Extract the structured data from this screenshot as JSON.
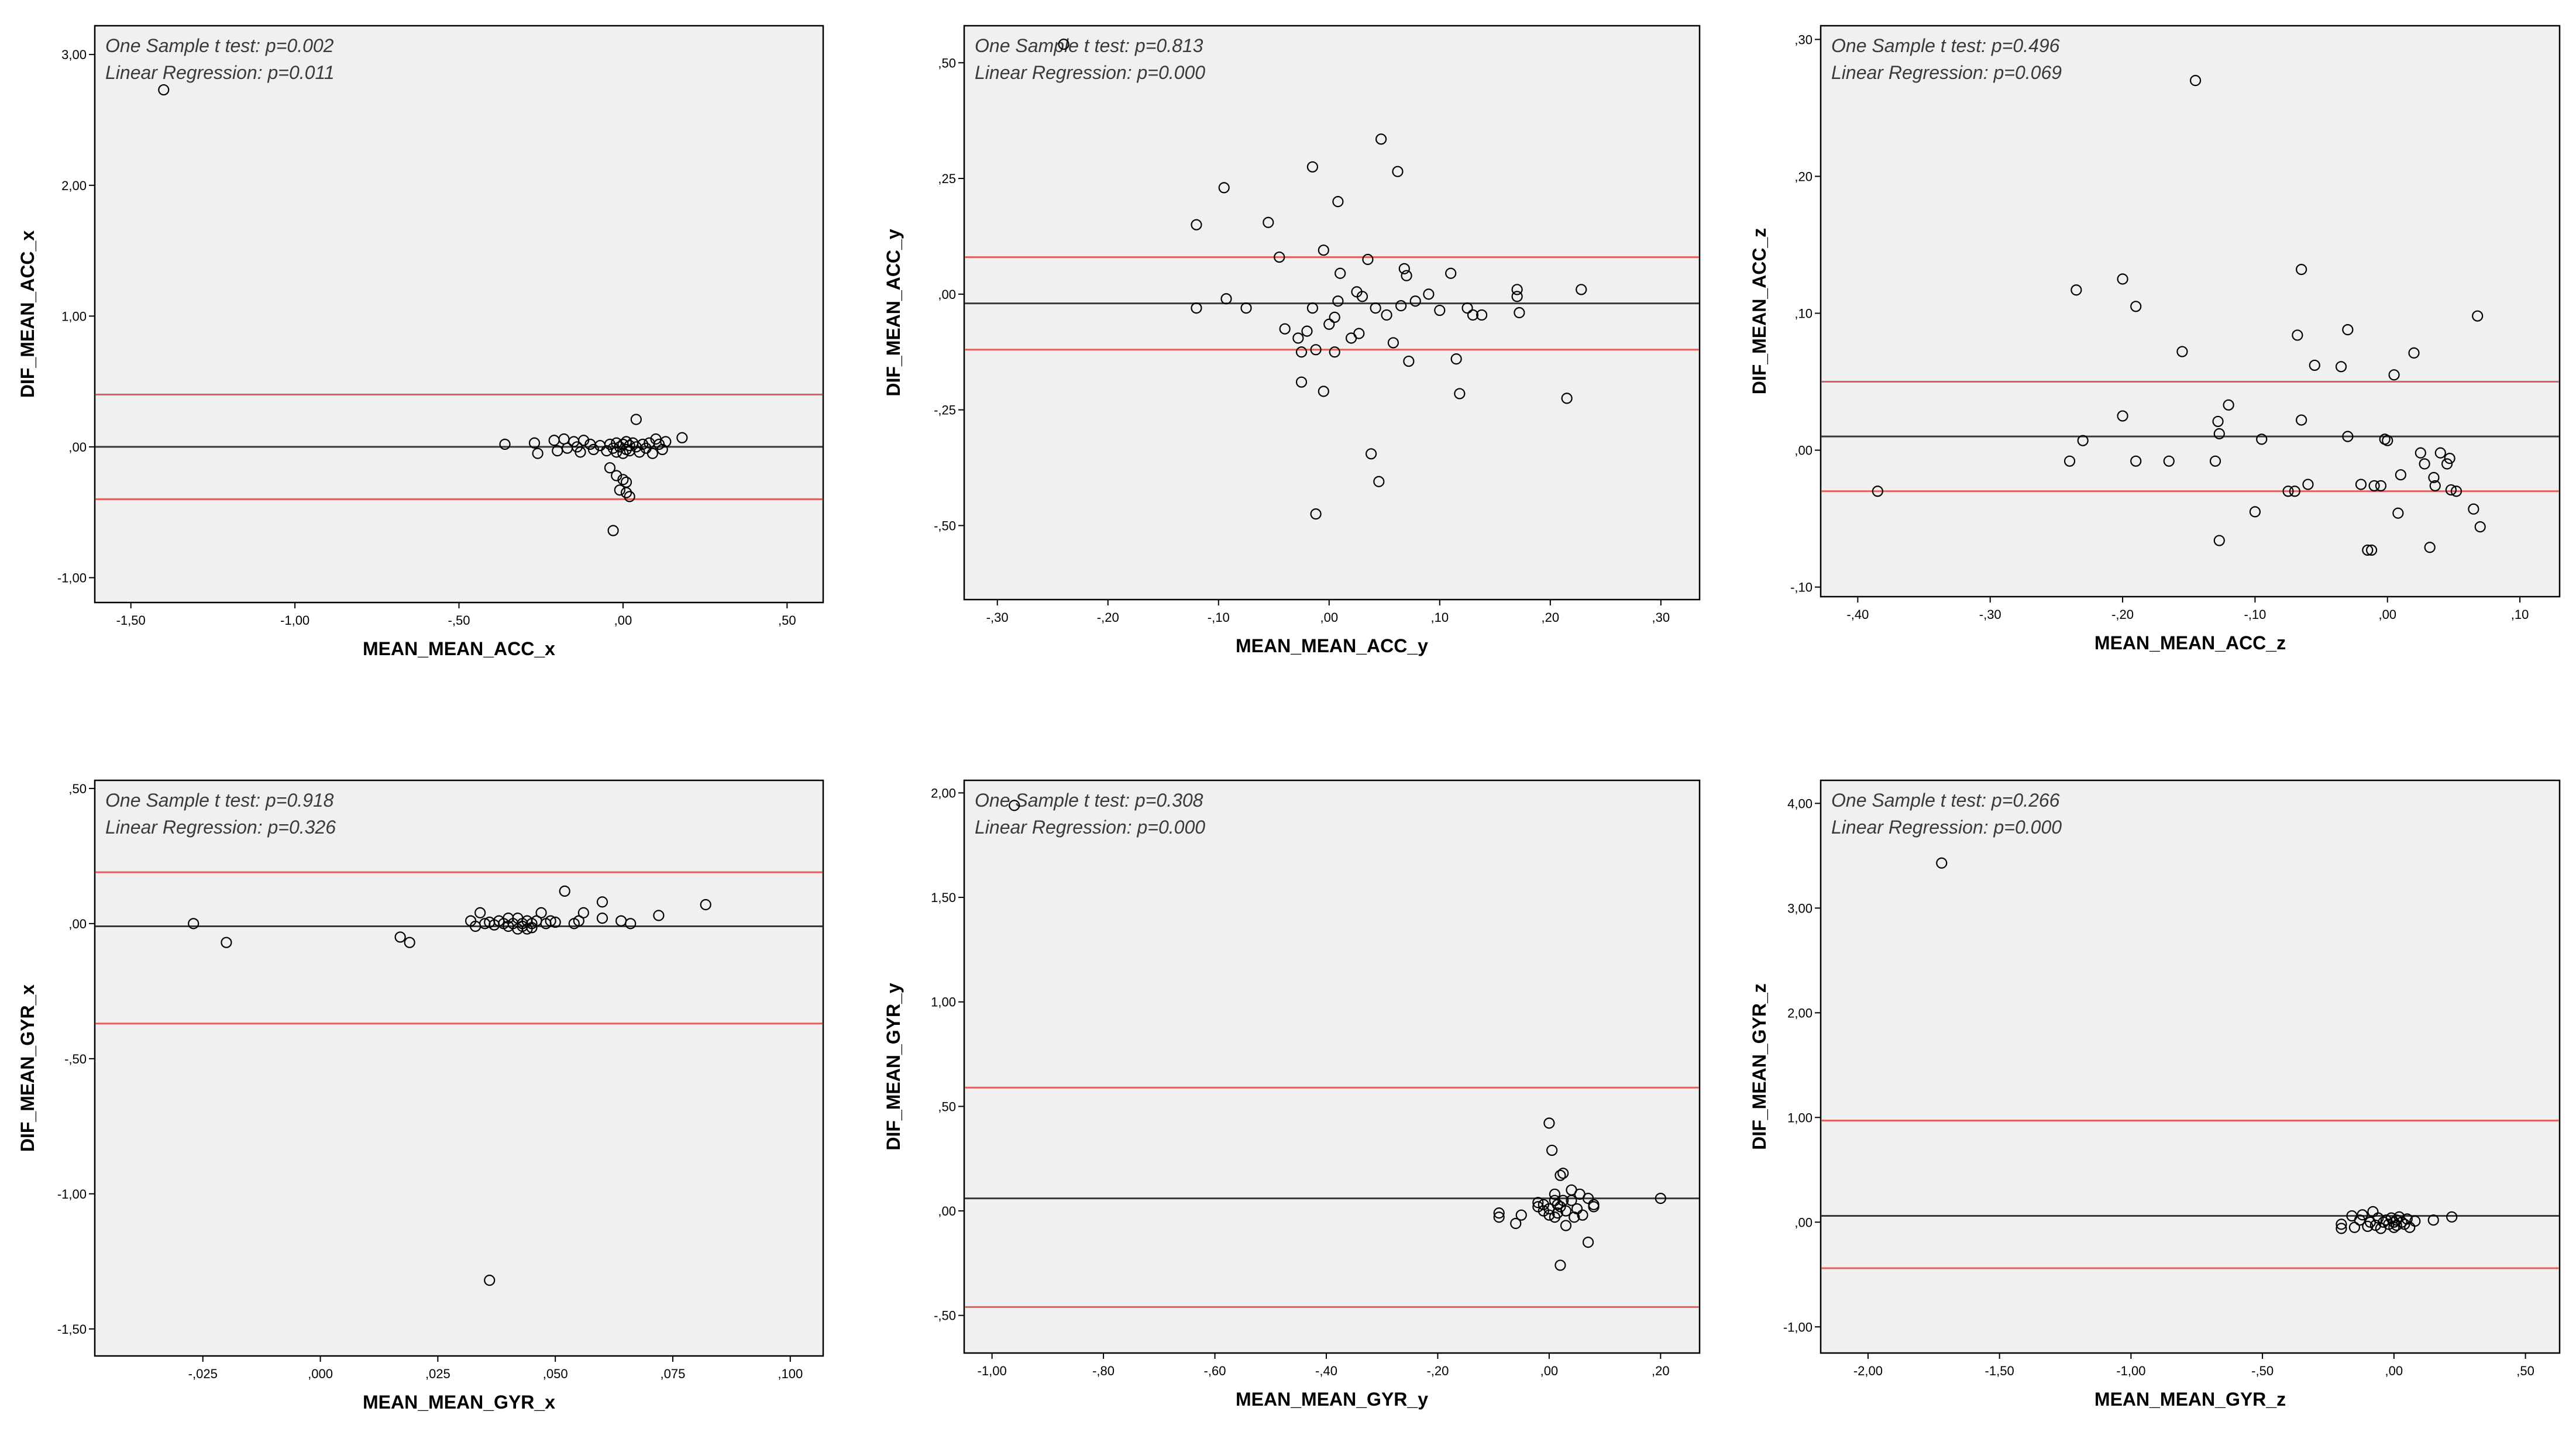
{
  "colors": {
    "mean_line": "#3a3a3a",
    "loa_line": "#e06060",
    "background": "#f0f0f0",
    "points": "#000000"
  },
  "chart_data": [
    {
      "id": "acc_x",
      "type": "scatter",
      "xlabel": "MEAN_MEAN_ACC_x",
      "ylabel": "DIF_MEAN_ACC_x",
      "xlim": [
        -1.61,
        0.61
      ],
      "ylim": [
        -1.19,
        3.22
      ],
      "xticks": [
        -1.5,
        -1.0,
        -0.5,
        0.0,
        0.5
      ],
      "xtick_labels": [
        "-1,50",
        "-1,00",
        "-,50",
        ",00",
        ",50"
      ],
      "yticks": [
        -1.0,
        0.0,
        1.0,
        2.0,
        3.0
      ],
      "ytick_labels": [
        "-1,00",
        ",00",
        "1,00",
        "2,00",
        "3,00"
      ],
      "annotations": [
        "One Sample t test: p=0.002",
        "Linear Regression: p=0.011"
      ],
      "mean_line": 0.0,
      "loa_upper": 0.4,
      "loa_lower": -0.4,
      "points": [
        [
          -1.4,
          2.73
        ],
        [
          -0.36,
          0.02
        ],
        [
          -0.27,
          0.03
        ],
        [
          -0.26,
          -0.05
        ],
        [
          -0.21,
          0.05
        ],
        [
          -0.2,
          -0.03
        ],
        [
          -0.18,
          0.06
        ],
        [
          -0.17,
          -0.01
        ],
        [
          -0.15,
          0.04
        ],
        [
          -0.14,
          0.0
        ],
        [
          -0.13,
          -0.04
        ],
        [
          -0.12,
          0.05
        ],
        [
          -0.1,
          0.02
        ],
        [
          -0.09,
          -0.02
        ],
        [
          -0.07,
          0.01
        ],
        [
          -0.05,
          -0.03
        ],
        [
          -0.04,
          0.02
        ],
        [
          -0.03,
          -0.01
        ],
        [
          -0.02,
          0.03
        ],
        [
          -0.02,
          -0.04
        ],
        [
          -0.01,
          0.0
        ],
        [
          0.0,
          0.02
        ],
        [
          0.0,
          -0.05
        ],
        [
          0.01,
          0.04
        ],
        [
          0.01,
          -0.02
        ],
        [
          0.02,
          0.01
        ],
        [
          0.02,
          -0.03
        ],
        [
          0.03,
          0.03
        ],
        [
          0.04,
          0.0
        ],
        [
          0.05,
          -0.04
        ],
        [
          0.06,
          0.02
        ],
        [
          0.07,
          -0.01
        ],
        [
          0.08,
          0.03
        ],
        [
          0.09,
          -0.05
        ],
        [
          0.1,
          0.06
        ],
        [
          0.11,
          0.02
        ],
        [
          0.12,
          -0.02
        ],
        [
          0.13,
          0.04
        ],
        [
          0.18,
          0.07
        ],
        [
          0.04,
          0.21
        ],
        [
          -0.04,
          -0.16
        ],
        [
          -0.02,
          -0.22
        ],
        [
          0.0,
          -0.25
        ],
        [
          0.01,
          -0.27
        ],
        [
          -0.01,
          -0.33
        ],
        [
          0.01,
          -0.35
        ],
        [
          -0.03,
          -0.64
        ],
        [
          0.02,
          -0.38
        ]
      ]
    },
    {
      "id": "acc_y",
      "type": "scatter",
      "xlabel": "MEAN_MEAN_ACC_y",
      "ylabel": "DIF_MEAN_ACC_y",
      "xlim": [
        -0.33,
        0.335
      ],
      "ylim": [
        -0.66,
        0.58
      ],
      "xticks": [
        -0.3,
        -0.2,
        -0.1,
        0.0,
        0.1,
        0.2,
        0.3
      ],
      "xtick_labels": [
        "-,30",
        "-,20",
        "-,10",
        ",00",
        ",10",
        ",20",
        ",30"
      ],
      "yticks": [
        -0.5,
        -0.25,
        0.0,
        0.25,
        0.5
      ],
      "ytick_labels": [
        "-,50",
        "-,25",
        ",00",
        ",25",
        ",50"
      ],
      "annotations": [
        "One Sample t test: p=0.813",
        "Linear Regression: p=0.000"
      ],
      "mean_line": -0.02,
      "loa_upper": 0.08,
      "loa_lower": -0.12,
      "points": [
        [
          -0.24,
          0.54
        ],
        [
          -0.12,
          0.15
        ],
        [
          -0.12,
          -0.03
        ],
        [
          -0.095,
          0.23
        ],
        [
          -0.093,
          -0.01
        ],
        [
          -0.075,
          -0.03
        ],
        [
          -0.055,
          0.155
        ],
        [
          -0.045,
          0.08
        ],
        [
          -0.04,
          -0.075
        ],
        [
          -0.028,
          -0.095
        ],
        [
          -0.025,
          -0.125
        ],
        [
          -0.025,
          -0.19
        ],
        [
          -0.02,
          -0.08
        ],
        [
          -0.015,
          -0.03
        ],
        [
          -0.015,
          0.275
        ],
        [
          -0.012,
          -0.12
        ],
        [
          -0.012,
          -0.475
        ],
        [
          -0.005,
          0.095
        ],
        [
          -0.005,
          -0.21
        ],
        [
          0.0,
          -0.065
        ],
        [
          0.005,
          -0.05
        ],
        [
          0.005,
          -0.125
        ],
        [
          0.008,
          -0.015
        ],
        [
          0.008,
          0.2
        ],
        [
          0.01,
          0.045
        ],
        [
          0.02,
          -0.095
        ],
        [
          0.025,
          0.005
        ],
        [
          0.027,
          -0.085
        ],
        [
          0.03,
          -0.005
        ],
        [
          0.035,
          0.075
        ],
        [
          0.038,
          -0.345
        ],
        [
          0.042,
          -0.03
        ],
        [
          0.045,
          -0.405
        ],
        [
          0.047,
          0.335
        ],
        [
          0.052,
          -0.045
        ],
        [
          0.058,
          -0.105
        ],
        [
          0.062,
          0.265
        ],
        [
          0.065,
          -0.025
        ],
        [
          0.068,
          0.055
        ],
        [
          0.07,
          0.04
        ],
        [
          0.072,
          -0.145
        ],
        [
          0.078,
          -0.015
        ],
        [
          0.09,
          0.0
        ],
        [
          0.1,
          -0.035
        ],
        [
          0.11,
          0.045
        ],
        [
          0.115,
          -0.14
        ],
        [
          0.118,
          -0.215
        ],
        [
          0.125,
          -0.03
        ],
        [
          0.13,
          -0.045
        ],
        [
          0.138,
          -0.045
        ],
        [
          0.17,
          0.01
        ],
        [
          0.17,
          -0.005
        ],
        [
          0.172,
          -0.04
        ],
        [
          0.215,
          -0.225
        ],
        [
          0.228,
          0.01
        ]
      ]
    },
    {
      "id": "acc_z",
      "type": "scatter",
      "xlabel": "MEAN_MEAN_ACC_z",
      "ylabel": "DIF_MEAN_ACC_z",
      "xlim": [
        -0.428,
        0.13
      ],
      "ylim": [
        -0.107,
        0.31
      ],
      "xticks": [
        -0.4,
        -0.3,
        -0.2,
        -0.1,
        0.0,
        0.1
      ],
      "xtick_labels": [
        "-,40",
        "-,30",
        "-,20",
        "-,10",
        ",00",
        ",10"
      ],
      "yticks": [
        -0.1,
        0.0,
        0.1,
        0.2,
        0.3
      ],
      "ytick_labels": [
        "-,10",
        ",00",
        ",10",
        ",20",
        ",30"
      ],
      "annotations": [
        "One Sample t test: p=0.496",
        "Linear Regression: p=0.069"
      ],
      "mean_line": 0.01,
      "loa_upper": 0.05,
      "loa_lower": -0.03,
      "points": [
        [
          -0.385,
          -0.03
        ],
        [
          -0.24,
          -0.008
        ],
        [
          -0.235,
          0.117
        ],
        [
          -0.23,
          0.007
        ],
        [
          -0.2,
          0.025
        ],
        [
          -0.2,
          0.125
        ],
        [
          -0.19,
          0.105
        ],
        [
          -0.19,
          -0.008
        ],
        [
          -0.165,
          -0.008
        ],
        [
          -0.155,
          0.072
        ],
        [
          -0.145,
          0.27
        ],
        [
          -0.13,
          -0.008
        ],
        [
          -0.128,
          0.021
        ],
        [
          -0.127,
          0.012
        ],
        [
          -0.127,
          -0.066
        ],
        [
          -0.12,
          0.033
        ],
        [
          -0.1,
          -0.045
        ],
        [
          -0.095,
          0.008
        ],
        [
          -0.075,
          -0.03
        ],
        [
          -0.07,
          -0.03
        ],
        [
          -0.068,
          0.084
        ],
        [
          -0.065,
          0.132
        ],
        [
          -0.065,
          0.022
        ],
        [
          -0.06,
          -0.025
        ],
        [
          -0.055,
          0.062
        ],
        [
          -0.035,
          0.061
        ],
        [
          -0.03,
          0.088
        ],
        [
          -0.03,
          0.01
        ],
        [
          -0.02,
          -0.025
        ],
        [
          -0.015,
          -0.073
        ],
        [
          -0.012,
          -0.073
        ],
        [
          -0.01,
          -0.026
        ],
        [
          -0.005,
          -0.026
        ],
        [
          -0.002,
          0.008
        ],
        [
          0.0,
          0.007
        ],
        [
          0.005,
          0.055
        ],
        [
          0.008,
          -0.046
        ],
        [
          0.01,
          -0.018
        ],
        [
          0.02,
          0.071
        ],
        [
          0.025,
          -0.002
        ],
        [
          0.028,
          -0.01
        ],
        [
          0.032,
          -0.071
        ],
        [
          0.035,
          -0.02
        ],
        [
          0.036,
          -0.026
        ],
        [
          0.04,
          -0.002
        ],
        [
          0.045,
          -0.01
        ],
        [
          0.047,
          -0.006
        ],
        [
          0.048,
          -0.029
        ],
        [
          0.052,
          -0.03
        ],
        [
          0.065,
          -0.043
        ],
        [
          0.068,
          0.098
        ],
        [
          0.07,
          -0.056
        ]
      ]
    },
    {
      "id": "gyr_x",
      "type": "scatter",
      "xlabel": "MEAN_MEAN_GYR_x",
      "ylabel": "DIF_MEAN_GYR_x",
      "xlim": [
        -0.048,
        0.107
      ],
      "ylim": [
        -1.6,
        0.53
      ],
      "xticks": [
        -0.025,
        0.0,
        0.025,
        0.05,
        0.075,
        0.1
      ],
      "xtick_labels": [
        "-,025",
        ",000",
        ",025",
        ",050",
        ",075",
        ",100"
      ],
      "yticks": [
        -1.5,
        -1.0,
        -0.5,
        0.0,
        0.5
      ],
      "ytick_labels": [
        "-1,50",
        "-1,00",
        "-,50",
        ",00",
        ",50"
      ],
      "annotations": [
        "One Sample t test: p=0.918",
        "Linear Regression: p=0.326"
      ],
      "mean_line": -0.01,
      "loa_upper": 0.19,
      "loa_lower": -0.37,
      "points": [
        [
          -0.027,
          0.0
        ],
        [
          -0.02,
          -0.07
        ],
        [
          0.017,
          -0.05
        ],
        [
          0.019,
          -0.07
        ],
        [
          0.032,
          0.01
        ],
        [
          0.033,
          -0.01
        ],
        [
          0.034,
          0.04
        ],
        [
          0.035,
          0.0
        ],
        [
          0.036,
          0.005
        ],
        [
          0.037,
          -0.005
        ],
        [
          0.038,
          0.01
        ],
        [
          0.039,
          0.0
        ],
        [
          0.04,
          0.02
        ],
        [
          0.04,
          -0.01
        ],
        [
          0.041,
          0.0
        ],
        [
          0.042,
          0.02
        ],
        [
          0.042,
          -0.02
        ],
        [
          0.043,
          0.0
        ],
        [
          0.043,
          -0.01
        ],
        [
          0.044,
          0.01
        ],
        [
          0.044,
          -0.02
        ],
        [
          0.045,
          0.0
        ],
        [
          0.045,
          -0.015
        ],
        [
          0.046,
          0.01
        ],
        [
          0.047,
          0.04
        ],
        [
          0.048,
          0.0
        ],
        [
          0.049,
          0.01
        ],
        [
          0.05,
          0.005
        ],
        [
          0.052,
          0.12
        ],
        [
          0.054,
          0.0
        ],
        [
          0.055,
          0.01
        ],
        [
          0.056,
          0.04
        ],
        [
          0.06,
          0.08
        ],
        [
          0.06,
          0.02
        ],
        [
          0.064,
          0.01
        ],
        [
          0.066,
          0.0
        ],
        [
          0.072,
          0.03
        ],
        [
          0.082,
          0.07
        ],
        [
          0.036,
          -1.32
        ]
      ]
    },
    {
      "id": "gyr_y",
      "type": "scatter",
      "xlabel": "MEAN_MEAN_GYR_y",
      "ylabel": "DIF_MEAN_GYR_y",
      "xlim": [
        -1.05,
        0.27
      ],
      "ylim": [
        -0.68,
        2.06
      ],
      "xticks": [
        -1.0,
        -0.8,
        -0.6,
        -0.4,
        -0.2,
        0.0,
        0.2
      ],
      "xtick_labels": [
        "-1,00",
        "-,80",
        "-,60",
        "-,40",
        "-,20",
        ",00",
        ",20"
      ],
      "yticks": [
        -0.5,
        0.0,
        0.5,
        1.0,
        1.5,
        2.0
      ],
      "ytick_labels": [
        "-,50",
        ",00",
        ",50",
        "1,00",
        "1,50",
        "2,00"
      ],
      "annotations": [
        "One Sample t test: p=0.308",
        "Linear Regression: p=0.000"
      ],
      "mean_line": 0.06,
      "loa_upper": 0.59,
      "loa_lower": -0.46,
      "points": [
        [
          -0.96,
          1.94
        ],
        [
          -0.09,
          -0.01
        ],
        [
          -0.09,
          -0.03
        ],
        [
          -0.06,
          -0.06
        ],
        [
          -0.05,
          -0.02
        ],
        [
          -0.02,
          0.02
        ],
        [
          -0.02,
          0.04
        ],
        [
          -0.01,
          0.03
        ],
        [
          -0.01,
          0.0
        ],
        [
          0.0,
          -0.02
        ],
        [
          0.0,
          0.42
        ],
        [
          0.0,
          0.01
        ],
        [
          0.005,
          0.29
        ],
        [
          0.01,
          -0.03
        ],
        [
          0.01,
          0.05
        ],
        [
          0.01,
          0.08
        ],
        [
          0.015,
          0.03
        ],
        [
          0.015,
          -0.01
        ],
        [
          0.02,
          0.02
        ],
        [
          0.02,
          0.17
        ],
        [
          0.02,
          -0.26
        ],
        [
          0.025,
          0.18
        ],
        [
          0.025,
          0.05
        ],
        [
          0.03,
          -0.07
        ],
        [
          0.03,
          0.0
        ],
        [
          0.04,
          0.05
        ],
        [
          0.04,
          0.1
        ],
        [
          0.045,
          -0.03
        ],
        [
          0.05,
          0.01
        ],
        [
          0.055,
          0.08
        ],
        [
          0.06,
          -0.02
        ],
        [
          0.07,
          -0.15
        ],
        [
          0.07,
          0.06
        ],
        [
          0.08,
          0.03
        ],
        [
          0.08,
          0.02
        ],
        [
          0.2,
          0.06
        ]
      ]
    },
    {
      "id": "gyr_z",
      "type": "scatter",
      "xlabel": "MEAN_MEAN_GYR_z",
      "ylabel": "DIF_MEAN_GYR_z",
      "xlim": [
        -2.18,
        0.63
      ],
      "ylim": [
        -1.25,
        4.22
      ],
      "xticks": [
        -2.0,
        -1.5,
        -1.0,
        -0.5,
        0.0,
        0.5
      ],
      "xtick_labels": [
        "-2,00",
        "-1,50",
        "-1,00",
        "-,50",
        ",00",
        ",50"
      ],
      "yticks": [
        -1.0,
        0.0,
        1.0,
        2.0,
        3.0,
        4.0
      ],
      "ytick_labels": [
        "-1,00",
        ",00",
        "1,00",
        "2,00",
        "3,00",
        "4,00"
      ],
      "annotations": [
        "One Sample t test: p=0.266",
        "Linear Regression: p=0.000"
      ],
      "mean_line": 0.06,
      "loa_upper": 0.97,
      "loa_lower": -0.44,
      "points": [
        [
          -1.72,
          3.43
        ],
        [
          -0.2,
          -0.02
        ],
        [
          -0.2,
          -0.06
        ],
        [
          -0.16,
          0.06
        ],
        [
          -0.15,
          -0.05
        ],
        [
          -0.13,
          0.02
        ],
        [
          -0.12,
          0.07
        ],
        [
          -0.1,
          -0.04
        ],
        [
          -0.09,
          0.0
        ],
        [
          -0.08,
          0.1
        ],
        [
          -0.07,
          -0.03
        ],
        [
          -0.06,
          0.04
        ],
        [
          -0.05,
          -0.06
        ],
        [
          -0.04,
          0.0
        ],
        [
          -0.03,
          0.02
        ],
        [
          -0.02,
          -0.02
        ],
        [
          -0.01,
          0.04
        ],
        [
          0.0,
          0.0
        ],
        [
          0.0,
          -0.05
        ],
        [
          0.01,
          0.02
        ],
        [
          0.01,
          -0.03
        ],
        [
          0.02,
          0.05
        ],
        [
          0.03,
          0.0
        ],
        [
          0.04,
          -0.02
        ],
        [
          0.05,
          0.03
        ],
        [
          0.06,
          -0.05
        ],
        [
          0.08,
          0.01
        ],
        [
          0.15,
          0.02
        ],
        [
          0.22,
          0.05
        ]
      ]
    }
  ]
}
